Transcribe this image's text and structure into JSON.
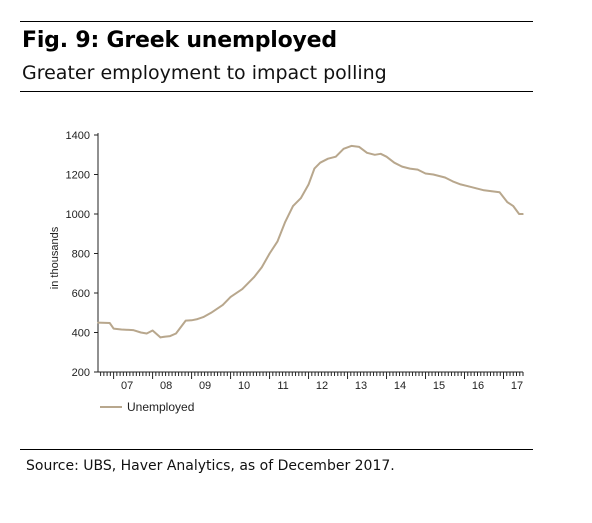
{
  "figure": {
    "title": "Fig. 9: Greek unemployed",
    "subtitle": "Greater employment to impact polling",
    "source": "Source: UBS, Haver Analytics, as of December 2017."
  },
  "chart_data": {
    "type": "line",
    "ylabel": "in thousands",
    "ylim": [
      200,
      1400
    ],
    "xlim": [
      2006.6,
      2017.5
    ],
    "y_ticks": [
      200,
      400,
      600,
      800,
      1000,
      1200,
      1400
    ],
    "x_ticks": [
      {
        "label": "07",
        "value": 2007.5
      },
      {
        "label": "08",
        "value": 2008.5
      },
      {
        "label": "09",
        "value": 2009.5
      },
      {
        "label": "10",
        "value": 2010.5
      },
      {
        "label": "11",
        "value": 2011.5
      },
      {
        "label": "12",
        "value": 2012.5
      },
      {
        "label": "13",
        "value": 2013.5
      },
      {
        "label": "14",
        "value": 2014.5
      },
      {
        "label": "15",
        "value": 2015.5
      },
      {
        "label": "16",
        "value": 2016.5
      },
      {
        "label": "17",
        "value": 2017.5
      }
    ],
    "grid": false,
    "legend_position": "bottom-left",
    "series": [
      {
        "name": "Unemployed",
        "color": "#b8a78d",
        "x": [
          2006.6,
          2006.9,
          2007.0,
          2007.2,
          2007.5,
          2007.7,
          2007.85,
          2008.0,
          2008.2,
          2008.3,
          2008.45,
          2008.6,
          2008.85,
          2009.0,
          2009.15,
          2009.3,
          2009.5,
          2009.8,
          2010.0,
          2010.3,
          2010.6,
          2010.8,
          2011.0,
          2011.2,
          2011.4,
          2011.6,
          2011.8,
          2012.0,
          2012.15,
          2012.3,
          2012.5,
          2012.7,
          2012.9,
          2013.1,
          2013.3,
          2013.5,
          2013.7,
          2013.85,
          2014.0,
          2014.2,
          2014.4,
          2014.6,
          2014.8,
          2015.0,
          2015.2,
          2015.5,
          2015.7,
          2015.9,
          2016.1,
          2016.3,
          2016.5,
          2016.7,
          2016.9,
          2017.1,
          2017.25,
          2017.4,
          2017.5
        ],
        "y": [
          450,
          448,
          420,
          415,
          412,
          400,
          395,
          410,
          375,
          378,
          382,
          395,
          460,
          462,
          468,
          478,
          500,
          540,
          580,
          620,
          680,
          730,
          800,
          860,
          960,
          1040,
          1080,
          1150,
          1230,
          1260,
          1280,
          1290,
          1330,
          1345,
          1340,
          1310,
          1300,
          1305,
          1290,
          1260,
          1240,
          1230,
          1225,
          1205,
          1200,
          1185,
          1165,
          1150,
          1140,
          1130,
          1120,
          1115,
          1110,
          1060,
          1040,
          1000,
          1000
        ]
      }
    ]
  }
}
